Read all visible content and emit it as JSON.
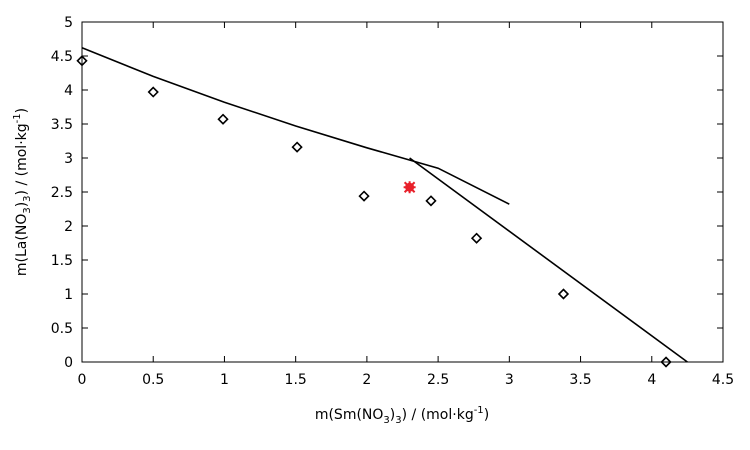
{
  "chart_data": {
    "type": "scatter",
    "title": "",
    "xlabel": {
      "prefix": "m(Sm(NO",
      "sub1": "3",
      "mid": ")",
      "sub2": "3",
      "suffix": ") / (mol·kg",
      "sup": "-1",
      "end": ")"
    },
    "ylabel": {
      "prefix": "m(La(NO",
      "sub1": "3",
      "mid": ")",
      "sub2": "3",
      "suffix": ") / (mol·kg",
      "sup": "-1",
      "end": ")"
    },
    "xlim": [
      0,
      4.5
    ],
    "ylim": [
      0,
      5
    ],
    "xticks": [
      "0",
      "0.5",
      "1",
      "1.5",
      "2",
      "2.5",
      "3",
      "3.5",
      "4",
      "4.5"
    ],
    "yticks": [
      "0",
      "0.5",
      "1",
      "1.5",
      "2",
      "2.5",
      "3",
      "3.5",
      "4",
      "4.5",
      "5"
    ],
    "grid": false,
    "series": [
      {
        "marker": "diamond-open",
        "color": "#000000",
        "points": [
          [
            0.0,
            4.43
          ],
          [
            0.5,
            3.97
          ],
          [
            0.99,
            3.57
          ],
          [
            1.51,
            3.16
          ],
          [
            1.98,
            2.44
          ],
          [
            2.45,
            2.37
          ],
          [
            2.77,
            1.82
          ],
          [
            3.38,
            1.0
          ],
          [
            4.1,
            0.0
          ]
        ]
      },
      {
        "marker": "filled-star",
        "color": "#e8202a",
        "points": [
          [
            2.3,
            2.57
          ]
        ]
      },
      {
        "marker": "line",
        "color": "#000000",
        "points": [
          [
            0.0,
            4.62
          ],
          [
            0.5,
            4.2
          ],
          [
            1.0,
            3.82
          ],
          [
            1.5,
            3.47
          ],
          [
            2.0,
            3.15
          ],
          [
            2.5,
            2.85
          ],
          [
            3.0,
            2.32
          ]
        ]
      },
      {
        "marker": "line",
        "color": "#000000",
        "points": [
          [
            2.3,
            3.0
          ],
          [
            4.25,
            0.0
          ]
        ]
      }
    ]
  }
}
